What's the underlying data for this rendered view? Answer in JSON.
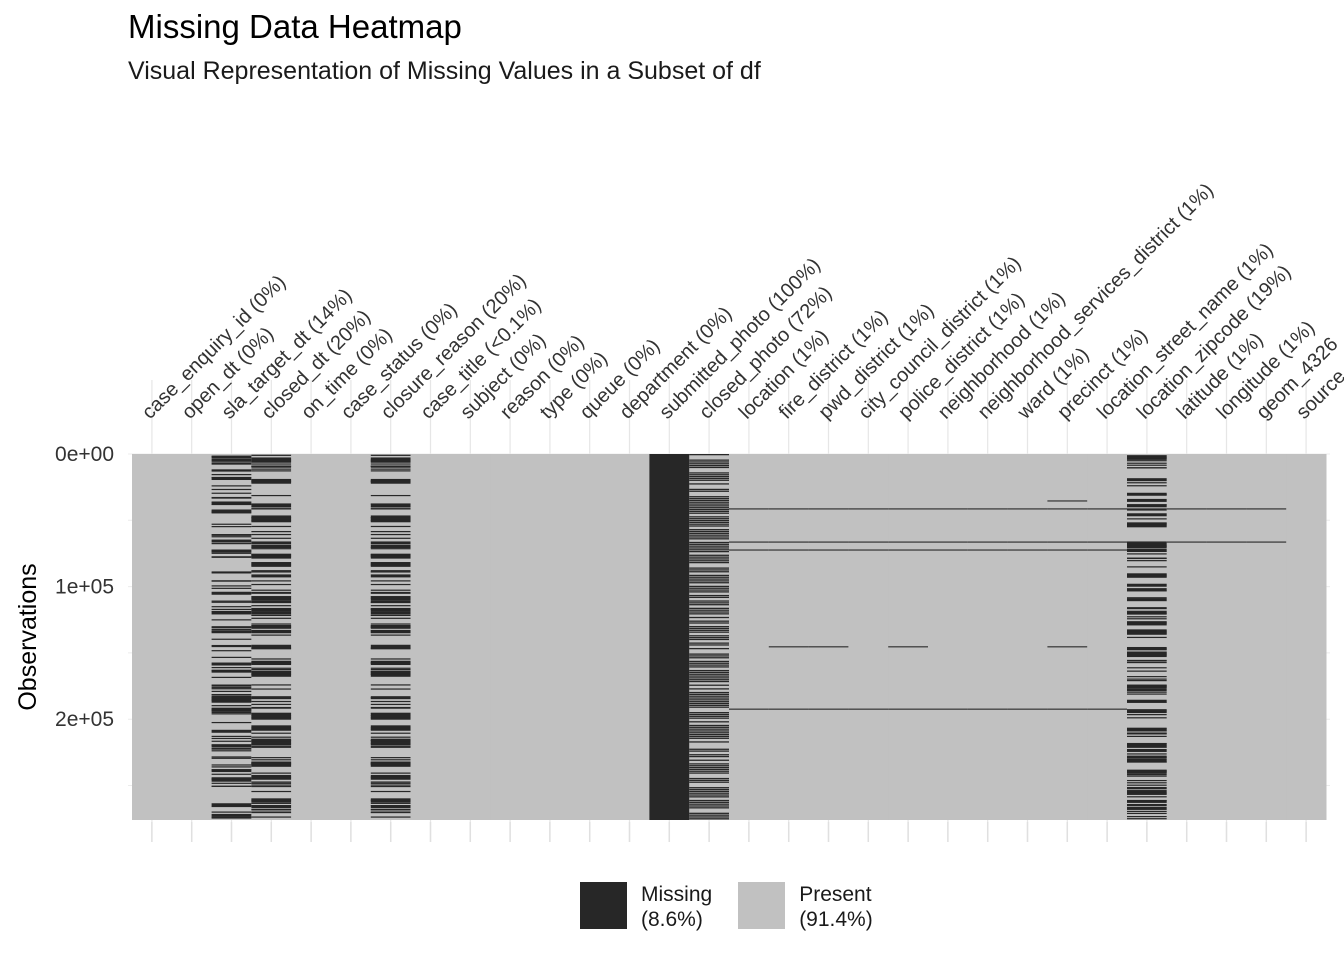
{
  "title": "Missing Data Heatmap",
  "subtitle": "Visual Representation of Missing Values in a Subset of df",
  "chart_data": {
    "type": "heatmap",
    "ylabel": "Observations",
    "ylim": [
      0,
      276000
    ],
    "y_reversed": true,
    "y_ticks": [
      0,
      100000,
      200000
    ],
    "y_tick_labels": [
      "0e+00",
      "1e+05",
      "2e+05"
    ],
    "grid": true,
    "colors": {
      "missing": "#272727",
      "present": "#c1c1c1"
    },
    "legend": {
      "placement": "bottom",
      "items": [
        {
          "label": "Missing",
          "pct": "(8.6%)",
          "color": "#272727"
        },
        {
          "label": "Present",
          "pct": "(91.4%)",
          "color": "#c1c1c1"
        }
      ]
    },
    "columns": [
      {
        "label": "case_enquiry_id (0%)",
        "missing_fraction": 0.0
      },
      {
        "label": "open_dt (0%)",
        "missing_fraction": 0.0
      },
      {
        "label": "sla_target_dt (14%)",
        "missing_fraction": 0.14
      },
      {
        "label": "closed_dt (20%)",
        "missing_fraction": 0.2
      },
      {
        "label": "on_time (0%)",
        "missing_fraction": 0.0
      },
      {
        "label": "case_status (0%)",
        "missing_fraction": 0.0
      },
      {
        "label": "closure_reason (20%)",
        "missing_fraction": 0.2
      },
      {
        "label": "case_title (<0.1%)",
        "missing_fraction": 0.001
      },
      {
        "label": "subject (0%)",
        "missing_fraction": 0.0
      },
      {
        "label": "reason (0%)",
        "missing_fraction": 0.0
      },
      {
        "label": "type (0%)",
        "missing_fraction": 0.0
      },
      {
        "label": "queue (0%)",
        "missing_fraction": 0.0
      },
      {
        "label": "department (0%)",
        "missing_fraction": 0.0
      },
      {
        "label": "submitted_photo (100%)",
        "missing_fraction": 1.0
      },
      {
        "label": "closed_photo (72%)",
        "missing_fraction": 0.72
      },
      {
        "label": "location (1%)",
        "missing_fraction": 0.01
      },
      {
        "label": "fire_district (1%)",
        "missing_fraction": 0.01
      },
      {
        "label": "pwd_district (1%)",
        "missing_fraction": 0.01
      },
      {
        "label": "city_council_district (1%)",
        "missing_fraction": 0.01
      },
      {
        "label": "police_district (1%)",
        "missing_fraction": 0.01
      },
      {
        "label": "neighborhood (1%)",
        "missing_fraction": 0.01
      },
      {
        "label": "neighborhood_services_district (1%)",
        "missing_fraction": 0.01
      },
      {
        "label": "ward (1%)",
        "missing_fraction": 0.01
      },
      {
        "label": "precinct (1%)",
        "missing_fraction": 0.01
      },
      {
        "label": "location_street_name (1%)",
        "missing_fraction": 0.01
      },
      {
        "label": "location_zipcode (19%)",
        "missing_fraction": 0.19
      },
      {
        "label": "latitude (1%)",
        "missing_fraction": 0.01
      },
      {
        "label": "longitude (1%)",
        "missing_fraction": 0.01
      },
      {
        "label": "geom_4326",
        "missing_fraction": 0.01
      },
      {
        "label": "source",
        "missing_fraction": 0.0
      }
    ],
    "shared_missing_rows": [
      {
        "row": 41000,
        "from_col": 15,
        "to_col": 28
      },
      {
        "row": 66000,
        "from_col": 15,
        "to_col": 28
      },
      {
        "row": 72000,
        "from_col": 15,
        "to_col": 24
      },
      {
        "row": 192000,
        "from_col": 15,
        "to_col": 24
      },
      {
        "row": 145000,
        "from_col": 16,
        "to_col": 17
      },
      {
        "row": 145000,
        "from_col": 19,
        "to_col": 19
      },
      {
        "row": 35000,
        "from_col": 23,
        "to_col": 23
      },
      {
        "row": 145000,
        "from_col": 23,
        "to_col": 23
      }
    ]
  }
}
